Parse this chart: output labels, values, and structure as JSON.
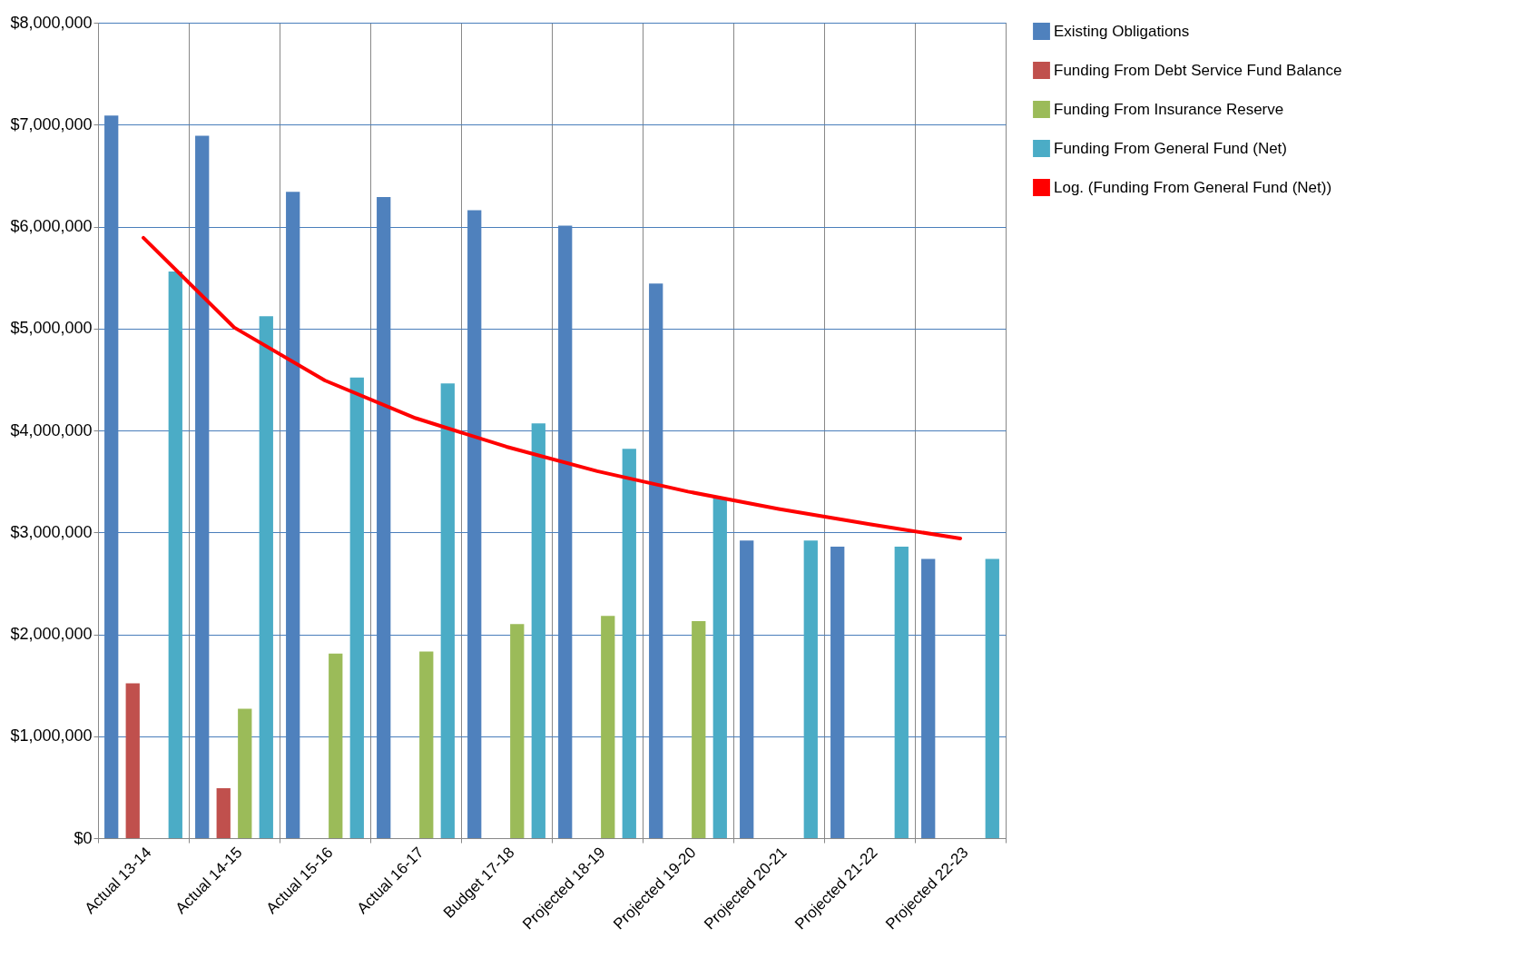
{
  "chart_data": {
    "type": "bar",
    "categories": [
      "Actual 13-14",
      "Actual 14-15",
      "Actual 15-16",
      "Actual 16-17",
      "Budget 17-18",
      "Projected 18-19",
      "Projected 19-20",
      "Projected 20-21",
      "Projected 21-22",
      "Projected 22-23"
    ],
    "series": [
      {
        "name": "Existing Obligations",
        "color": "#4f81bd",
        "values": [
          7090000,
          6890000,
          6340000,
          6290000,
          6160000,
          6010000,
          5440000,
          2920000,
          2860000,
          2740000
        ]
      },
      {
        "name": "Funding From Debt Service Fund Balance",
        "color": "#c0504d",
        "values": [
          1520000,
          490000,
          null,
          null,
          null,
          null,
          null,
          null,
          null,
          null
        ]
      },
      {
        "name": "Funding From Insurance Reserve",
        "color": "#9bbb59",
        "values": [
          null,
          1270000,
          1810000,
          1830000,
          2100000,
          2180000,
          2130000,
          null,
          null,
          null
        ]
      },
      {
        "name": "Funding From General Fund (Net)",
        "color": "#4bacc6",
        "values": [
          5560000,
          5120000,
          4520000,
          4460000,
          4070000,
          3820000,
          3340000,
          2920000,
          2860000,
          2740000
        ]
      },
      {
        "name": "Log. (Funding From General Fund (Net))",
        "type": "line",
        "color": "#ff0000",
        "values": [
          5890000,
          5010000,
          4490000,
          4120000,
          3840000,
          3600000,
          3400000,
          3230000,
          3080000,
          2940000
        ]
      }
    ],
    "ylim": [
      0,
      8000000
    ],
    "yticks": [
      {
        "value": 0,
        "label": "$0"
      },
      {
        "value": 1000000,
        "label": "$1,000,000"
      },
      {
        "value": 2000000,
        "label": "$2,000,000"
      },
      {
        "value": 3000000,
        "label": "$3,000,000"
      },
      {
        "value": 4000000,
        "label": "$4,000,000"
      },
      {
        "value": 5000000,
        "label": "$5,000,000"
      },
      {
        "value": 6000000,
        "label": "$6,000,000"
      },
      {
        "value": 7000000,
        "label": "$7,000,000"
      },
      {
        "value": 8000000,
        "label": "$8,000,000"
      }
    ],
    "grid": true,
    "legend": "right"
  }
}
